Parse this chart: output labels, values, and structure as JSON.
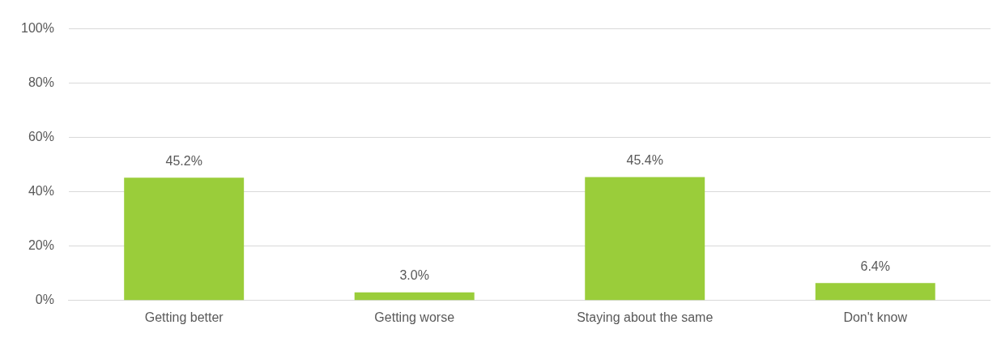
{
  "chart_data": {
    "type": "bar",
    "categories": [
      "Getting better",
      "Getting worse",
      "Staying about the same",
      "Don't know"
    ],
    "values": [
      45.2,
      3.0,
      45.4,
      6.4
    ],
    "value_labels": [
      "45.2%",
      "3.0%",
      "45.4%",
      "6.4%"
    ],
    "color": "#9acd3a",
    "ylim": [
      0,
      100
    ],
    "yticks": [
      {
        "value": 0,
        "label": "0%"
      },
      {
        "value": 20,
        "label": "20%"
      },
      {
        "value": 40,
        "label": "40%"
      },
      {
        "value": 60,
        "label": "60%"
      },
      {
        "value": 80,
        "label": "80%"
      },
      {
        "value": 100,
        "label": "100%"
      }
    ],
    "grid": "y",
    "legend": false
  }
}
